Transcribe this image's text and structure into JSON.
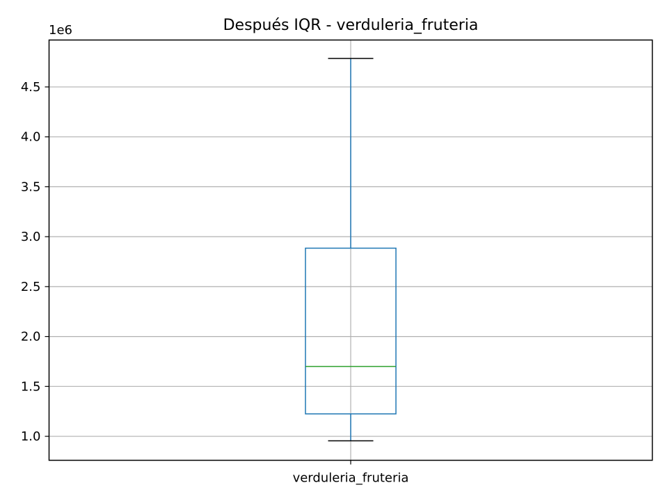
{
  "chart_data": {
    "type": "box",
    "title": "Después IQR - verduleria_fruteria",
    "xlabel": "",
    "ylabel": "",
    "y_offset_label": "1e6",
    "y_scale": 1000000,
    "ylim": [
      760000,
      4970000
    ],
    "y_ticks": [
      1.0,
      1.5,
      2.0,
      2.5,
      3.0,
      3.5,
      4.0,
      4.5
    ],
    "y_tick_labels": [
      "1.0",
      "1.5",
      "2.0",
      "2.5",
      "3.0",
      "3.5",
      "4.0",
      "4.5"
    ],
    "grid": true,
    "categories": [
      "verduleria_fruteria"
    ],
    "boxes": [
      {
        "category": "verduleria_fruteria",
        "whisker_low": 955000,
        "q1": 1225000,
        "median": 1700000,
        "q3": 2885000,
        "whisker_high": 4785000
      }
    ],
    "colors": {
      "box": "#1f77b4",
      "median": "#2ca02c",
      "caps": "#000000",
      "grid": "#b0b0b0",
      "frame": "#000000"
    }
  }
}
